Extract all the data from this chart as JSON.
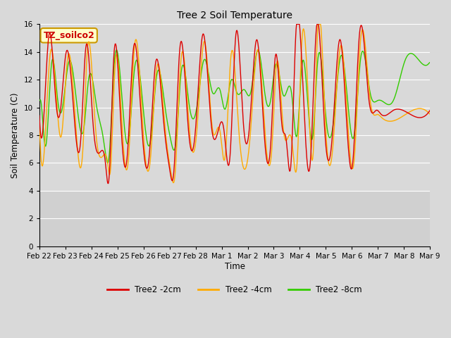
{
  "title": "Tree 2 Soil Temperature",
  "ylabel": "Soil Temperature (C)",
  "xlabel": "Time",
  "annotation_text": "TZ_soilco2",
  "annotation_bg": "#ffffcc",
  "annotation_border": "#cc9900",
  "annotation_text_color": "#cc0000",
  "ylim": [
    0,
    16
  ],
  "yticks": [
    0,
    2,
    4,
    6,
    8,
    10,
    12,
    14,
    16
  ],
  "bg_color": "#d9d9d9",
  "plot_active_bg": "#d9d9d9",
  "grid_color": "white",
  "line_2cm_color": "#dd0000",
  "line_4cm_color": "#ffaa00",
  "line_8cm_color": "#33cc00",
  "legend_labels": [
    "Tree2 -2cm",
    "Tree2 -4cm",
    "Tree2 -8cm"
  ],
  "x_tick_labels": [
    "Feb 22",
    "Feb 23",
    "Feb 24",
    "Feb 25",
    "Feb 26",
    "Feb 27",
    "Feb 28",
    "Mar 1",
    "Mar 2",
    "Mar 3",
    "Mar 4",
    "Mar 5",
    "Mar 6",
    "Mar 7",
    "Mar 8",
    "Mar 9"
  ],
  "figsize": [
    6.4,
    4.8
  ],
  "dpi": 100
}
